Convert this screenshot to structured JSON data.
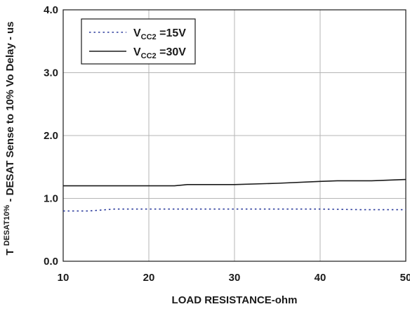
{
  "chart_data": {
    "type": "line",
    "xlabel": "LOAD RESISTANCE-ohm",
    "ylabel": {
      "prefix": "T",
      "superscript": "DESAT10%",
      "rest": " - DESAT Sense to 10% Vo Delay - us"
    },
    "xlim": [
      10,
      50
    ],
    "ylim": [
      0,
      4
    ],
    "x_ticks": [
      "10",
      "20",
      "30",
      "40",
      "50"
    ],
    "y_ticks": [
      "0.0",
      "1.0",
      "2.0",
      "3.0",
      "4.0"
    ],
    "grid": true,
    "legend_position": "top-left",
    "series": [
      {
        "name": {
          "main": "V",
          "sub": "CC2",
          "rest": " =15V"
        },
        "style": "dotted",
        "color": "#2b3b9c",
        "x": [
          10,
          13,
          15,
          16,
          20,
          25,
          30,
          35,
          40,
          45,
          50
        ],
        "y": [
          0.8,
          0.8,
          0.82,
          0.83,
          0.83,
          0.83,
          0.83,
          0.83,
          0.83,
          0.82,
          0.82
        ]
      },
      {
        "name": {
          "main": "V",
          "sub": "CC2",
          "rest": " =30V"
        },
        "style": "solid",
        "color": "#1a1a1a",
        "x": [
          10,
          15,
          20,
          23,
          24.5,
          30,
          35,
          40,
          42,
          46,
          50
        ],
        "y": [
          1.2,
          1.2,
          1.2,
          1.2,
          1.22,
          1.22,
          1.24,
          1.27,
          1.28,
          1.28,
          1.3
        ]
      }
    ]
  }
}
